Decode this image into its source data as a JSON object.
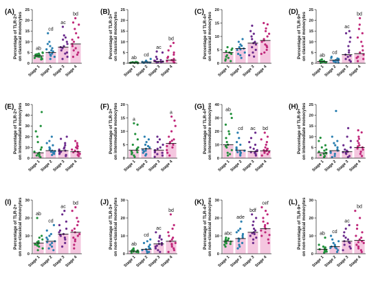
{
  "colors": {
    "Stage 1": "#22913c",
    "Stage 2": "#2a7fb0",
    "Stage 3": "#6a2a8c",
    "Stage 4": "#c0287a",
    "bar": "#f4c6df"
  },
  "chart_data": [
    {
      "type": "scatter",
      "panel": "(A)",
      "ylabel": [
        "Percentage of TLR-2+",
        "on classical monocytes"
      ],
      "ylim": [
        0,
        25
      ],
      "yticks": [
        0,
        5,
        10,
        15,
        20,
        25
      ],
      "categories": [
        "Stage 1",
        "Stage 2",
        "Stage 3",
        "Stage 4"
      ],
      "annotations": [
        "ab",
        "cd",
        "ac",
        "bd"
      ],
      "medians": [
        3.5,
        5.0,
        7.5,
        9.0
      ],
      "values": [
        [
          2.0,
          2.5,
          3.0,
          3.2,
          3.5,
          3.8,
          4.0,
          4.2,
          4.5,
          5.0,
          2.8,
          3.3,
          4.8,
          1.8
        ],
        [
          2.0,
          3.0,
          4.0,
          4.5,
          5.0,
          5.5,
          6.0,
          7.0,
          8.0,
          9.0,
          10.0,
          3.5,
          6.5,
          14.0
        ],
        [
          2.0,
          3.0,
          4.5,
          6.0,
          7.0,
          7.5,
          8.0,
          9.0,
          10.0,
          11.0,
          12.0,
          13.0,
          5.0,
          17.0
        ],
        [
          3.0,
          4.0,
          5.0,
          6.0,
          7.0,
          8.0,
          9.0,
          10.0,
          11.0,
          12.0,
          14.0,
          16.0,
          18.0,
          21.0,
          19.0
        ]
      ]
    },
    {
      "type": "scatter",
      "panel": "(B)",
      "ylabel": [
        "Percentage of TLR-3+",
        "on classical monocytes"
      ],
      "ylim": [
        0,
        25
      ],
      "yticks": [
        0,
        5,
        10,
        15,
        20,
        25
      ],
      "categories": [
        "Stage 1",
        "Stage 2",
        "Stage 3",
        "Stage 4"
      ],
      "annotations": [
        "ab",
        "cd",
        "ac",
        "bd"
      ],
      "medians": [
        0.3,
        0.6,
        0.8,
        1.5
      ],
      "values": [
        [
          0.1,
          0.2,
          0.3,
          0.3,
          0.4,
          0.5,
          0.2,
          0.6,
          0.1
        ],
        [
          0.2,
          0.4,
          0.5,
          0.6,
          0.8,
          1.0,
          1.2,
          0.3,
          0.7,
          2.0
        ],
        [
          0.3,
          0.5,
          0.8,
          1.0,
          1.2,
          1.5,
          2.0,
          3.0,
          5.0,
          5.5,
          0.6
        ],
        [
          0.5,
          0.8,
          1.0,
          1.5,
          2.0,
          3.0,
          4.0,
          5.0,
          6.0,
          8.0,
          9.5,
          1.2,
          0.3,
          2.5
        ]
      ]
    },
    {
      "type": "scatter",
      "panel": "(C)",
      "ylabel": [
        "Percentage of TLR-4+",
        "on classical monocytes"
      ],
      "ylim": [
        0,
        20
      ],
      "yticks": [
        0,
        5,
        10,
        15,
        20
      ],
      "categories": [
        "Stage 1",
        "Stage 2",
        "Stage 3",
        "Stage 4"
      ],
      "annotations": [],
      "medians": [
        4.0,
        5.5,
        7.5,
        8.5
      ],
      "values": [
        [
          1.0,
          2.0,
          3.0,
          3.5,
          4.0,
          4.5,
          5.0,
          5.5,
          6.0,
          2.5,
          1.5,
          3.8,
          0.8
        ],
        [
          2.0,
          3.5,
          4.0,
          5.0,
          5.5,
          6.0,
          6.5,
          7.0,
          8.0,
          9.0,
          3.0,
          5.2
        ],
        [
          3.0,
          4.0,
          5.0,
          6.0,
          7.0,
          7.5,
          8.0,
          9.0,
          10.0,
          11.0,
          12.0,
          14.0,
          2.5
        ],
        [
          4.0,
          5.0,
          6.0,
          7.0,
          8.0,
          8.5,
          9.0,
          10.0,
          11.0,
          12.0,
          13.0,
          14.5,
          15.0,
          6.5,
          3.5
        ]
      ]
    },
    {
      "type": "scatter",
      "panel": "(D)",
      "ylabel": [
        "Percentage of TLR-9+",
        "on classical monocytes"
      ],
      "ylim": [
        0,
        25
      ],
      "yticks": [
        0,
        5,
        10,
        15,
        20,
        25
      ],
      "categories": [
        "Stage 1",
        "Stage 2",
        "Stage 3",
        "Stage 4"
      ],
      "annotations": [
        "ab",
        "cd",
        "ac",
        "bd"
      ],
      "medians": [
        0.8,
        1.5,
        4.0,
        4.5
      ],
      "values": [
        [
          0.2,
          0.3,
          0.5,
          0.8,
          1.0,
          1.2,
          1.5,
          0.6,
          0.4,
          1.8
        ],
        [
          0.5,
          0.8,
          1.0,
          1.5,
          2.0,
          2.5,
          3.0,
          1.2,
          0.3,
          2.2
        ],
        [
          0.8,
          1.5,
          2.0,
          3.0,
          4.0,
          5.0,
          6.0,
          8.0,
          10.0,
          12.0,
          14.0,
          15.0,
          3.5
        ],
        [
          1.0,
          2.0,
          3.0,
          4.0,
          5.0,
          6.0,
          8.0,
          10.0,
          12.0,
          14.0,
          16.0,
          18.0,
          21.0,
          2.5
        ]
      ]
    },
    {
      "type": "scatter",
      "panel": "(E)",
      "ylabel": [
        "Percentage of TLR-2+",
        "on intermediate monocytes"
      ],
      "ylim": [
        0,
        50
      ],
      "yticks": [
        0,
        10,
        20,
        30,
        40,
        50
      ],
      "categories": [
        "Stage 1",
        "Stage 2",
        "Stage 3",
        "Stage 4"
      ],
      "annotations": [],
      "medians": [
        5.0,
        7.0,
        7.0,
        6.0
      ],
      "values": [
        [
          1.0,
          2.0,
          3.0,
          4.0,
          5.0,
          6.0,
          8.0,
          10.0,
          15.0,
          20.0,
          25.0,
          30.0,
          43.0,
          2.5
        ],
        [
          3.0,
          4.0,
          5.0,
          6.0,
          7.0,
          8.0,
          9.0,
          10.0,
          12.0,
          14.0,
          16.0,
          20.0,
          5.5,
          6.5
        ],
        [
          2.0,
          3.0,
          4.0,
          5.0,
          6.0,
          7.0,
          8.0,
          9.0,
          10.0,
          12.0,
          14.0,
          18.0,
          20.0,
          6.5
        ],
        [
          2.0,
          3.0,
          4.0,
          5.0,
          6.0,
          7.0,
          8.0,
          9.0,
          10.0,
          11.0,
          12.0,
          14.0,
          16.0,
          5.5
        ]
      ]
    },
    {
      "type": "scatter",
      "panel": "(F)",
      "ylabel": [
        "Percentage of TLR-3+",
        "on intermediate monocytes"
      ],
      "ylim": [
        0,
        20
      ],
      "yticks": [
        0,
        5,
        10,
        15,
        20
      ],
      "categories": [
        "Stage 1",
        "Stage 2",
        "Stage 3",
        "Stage 4"
      ],
      "annotations": [
        "a",
        "",
        "",
        "a"
      ],
      "medians": [
        3.0,
        3.5,
        3.0,
        5.5
      ],
      "values": [
        [
          0.5,
          1.0,
          1.5,
          2.0,
          2.5,
          3.0,
          3.5,
          4.0,
          5.0,
          7.0,
          9.0,
          13.0,
          12.5,
          2.2
        ],
        [
          1.0,
          1.5,
          2.0,
          2.5,
          3.0,
          3.5,
          4.0,
          5.0,
          6.0,
          7.0,
          8.0,
          2.8,
          4.5
        ],
        [
          0.5,
          1.0,
          1.5,
          2.0,
          2.5,
          3.0,
          4.0,
          5.0,
          6.0,
          7.0,
          8.0,
          2.2,
          3.5
        ],
        [
          1.0,
          2.0,
          3.0,
          4.0,
          5.0,
          5.5,
          6.0,
          7.0,
          8.0,
          10.0,
          12.0,
          14.0,
          15.5,
          4.5,
          6.5
        ]
      ]
    },
    {
      "type": "scatter",
      "panel": "(G)",
      "ylabel": [
        "Percentage of TLR-4+",
        "on intermediate monocytes"
      ],
      "ylim": [
        0,
        40
      ],
      "yticks": [
        0,
        10,
        20,
        30,
        40
      ],
      "categories": [
        "Stage 1",
        "Stage 2",
        "Stage 3",
        "Stage 4"
      ],
      "annotations": [
        "ab",
        "cd",
        "ac",
        "bd"
      ],
      "medians": [
        10.0,
        6.0,
        5.0,
        5.5
      ],
      "values": [
        [
          2.0,
          4.0,
          6.0,
          8.0,
          10.0,
          12.0,
          15.0,
          18.0,
          20.0,
          25.0,
          30.0,
          33.0,
          3.0,
          9.0
        ],
        [
          2.0,
          3.0,
          4.0,
          5.0,
          6.0,
          7.0,
          8.0,
          10.0,
          12.0,
          15.0,
          19.0,
          5.5,
          4.5
        ],
        [
          2.0,
          3.0,
          4.0,
          5.0,
          5.5,
          6.0,
          7.0,
          8.0,
          10.0,
          12.0,
          15.0,
          19.0,
          4.5
        ],
        [
          2.0,
          3.0,
          4.0,
          5.0,
          5.5,
          6.0,
          7.0,
          8.0,
          10.0,
          12.0,
          14.0,
          16.0,
          19.0,
          4.5,
          6.5
        ]
      ]
    },
    {
      "type": "scatter",
      "panel": "(H)",
      "ylabel": [
        "Percentage of TLR-9+",
        "on intermediate monocytes"
      ],
      "ylim": [
        0,
        25
      ],
      "yticks": [
        0,
        5,
        10,
        15,
        20,
        25
      ],
      "categories": [
        "Stage 1",
        "Stage 2",
        "Stage 3",
        "Stage 4"
      ],
      "annotations": [],
      "medians": [
        2.5,
        3.5,
        3.0,
        5.0
      ],
      "values": [
        [
          0.5,
          1.0,
          1.5,
          2.0,
          2.5,
          3.0,
          3.5,
          4.0,
          5.0,
          6.0,
          8.0,
          9.5,
          2.2
        ],
        [
          0.5,
          1.0,
          2.0,
          3.0,
          3.5,
          4.0,
          5.0,
          6.0,
          7.0,
          8.0,
          10.0,
          22.0,
          2.5
        ],
        [
          0.5,
          1.0,
          2.0,
          2.5,
          3.0,
          3.5,
          4.0,
          5.0,
          6.0,
          8.0,
          10.0,
          14.0,
          2.8
        ],
        [
          1.0,
          2.0,
          3.0,
          4.0,
          5.0,
          5.5,
          6.0,
          7.0,
          8.0,
          9.0,
          10.0,
          12.0,
          13.0,
          4.5
        ]
      ]
    },
    {
      "type": "scatter",
      "panel": "(I)",
      "ylabel": [
        "Percentage of TLR-2+",
        "on non-classical monocytes"
      ],
      "ylim": [
        0,
        30
      ],
      "yticks": [
        0,
        10,
        20,
        30
      ],
      "categories": [
        "Stage 1",
        "Stage 2",
        "Stage 3",
        "Stage 4"
      ],
      "annotations": [
        "ab",
        "cd",
        "ac",
        "bd"
      ],
      "medians": [
        6.0,
        7.0,
        11.0,
        12.0
      ],
      "values": [
        [
          2.0,
          3.0,
          4.0,
          5.0,
          5.5,
          6.0,
          6.5,
          7.0,
          8.0,
          9.0,
          10.0,
          20.0,
          4.5,
          5.2
        ],
        [
          2.0,
          3.0,
          4.0,
          5.0,
          6.0,
          7.0,
          8.0,
          9.0,
          10.0,
          11.0,
          13.0,
          16.0,
          6.5
        ],
        [
          4.0,
          6.0,
          8.0,
          9.0,
          10.0,
          11.0,
          12.0,
          13.0,
          14.0,
          16.0,
          18.0,
          22.0,
          24.0,
          10.5
        ],
        [
          3.0,
          5.0,
          7.0,
          9.0,
          10.0,
          11.0,
          12.0,
          13.0,
          14.0,
          16.0,
          18.0,
          20.0,
          24.0,
          26.0,
          8.0
        ]
      ]
    },
    {
      "type": "scatter",
      "panel": "(J)",
      "ylabel": [
        "Percentage of TLR-3+",
        "on non-classical monocytes"
      ],
      "ylim": [
        0,
        30
      ],
      "yticks": [
        0,
        10,
        20,
        30
      ],
      "categories": [
        "Stage 1",
        "Stage 2",
        "Stage 3",
        "Stage 4"
      ],
      "annotations": [
        "ab",
        "cd",
        "ac",
        "bd"
      ],
      "medians": [
        1.5,
        2.5,
        5.5,
        7.0
      ],
      "values": [
        [
          0.5,
          1.0,
          1.5,
          2.0,
          2.5,
          3.0,
          1.2,
          0.8,
          1.8,
          2.2
        ],
        [
          0.5,
          1.0,
          1.5,
          2.0,
          2.5,
          3.0,
          4.0,
          5.0,
          6.0,
          7.0,
          8.0,
          2.8
        ],
        [
          1.0,
          2.0,
          3.0,
          4.0,
          5.0,
          5.5,
          6.0,
          7.0,
          8.0,
          9.0,
          10.0,
          12.0,
          4.5
        ],
        [
          1.0,
          2.0,
          3.0,
          4.0,
          5.0,
          6.0,
          7.0,
          8.0,
          9.0,
          10.0,
          12.0,
          14.0,
          16.0,
          22.0,
          5.5
        ]
      ]
    },
    {
      "type": "scatter",
      "panel": "(K)",
      "ylabel": [
        "Percentage of TLR-4+",
        "on non-classical monocytes"
      ],
      "ylim": [
        0,
        30
      ],
      "yticks": [
        0,
        10,
        20,
        30
      ],
      "categories": [
        "Stage 1",
        "Stage 2",
        "Stage 3",
        "Stage 4"
      ],
      "annotations": [
        "abc",
        "ade",
        "bdf",
        "cef"
      ],
      "medians": [
        7.0,
        8.5,
        12.0,
        14.0
      ],
      "values": [
        [
          4.0,
          5.0,
          5.5,
          6.0,
          6.5,
          7.0,
          7.5,
          8.0,
          8.5,
          9.0,
          6.8,
          7.2,
          5.8
        ],
        [
          3.0,
          4.0,
          5.0,
          6.0,
          7.0,
          8.0,
          9.0,
          10.0,
          11.0,
          12.0,
          13.0,
          14.0,
          18.0,
          8.5
        ],
        [
          6.0,
          8.0,
          9.0,
          10.0,
          11.0,
          12.0,
          13.0,
          14.0,
          16.0,
          18.0,
          20.0,
          22.0,
          11.5
        ],
        [
          6.0,
          8.0,
          10.0,
          12.0,
          13.0,
          14.0,
          15.0,
          16.0,
          17.0,
          18.0,
          20.0,
          22.0,
          24.0,
          26.0,
          10.5
        ]
      ]
    },
    {
      "type": "scatter",
      "panel": "(L)",
      "ylabel": [
        "Percentage of TLR-9+",
        "on non-classical monocytes"
      ],
      "ylim": [
        0,
        30
      ],
      "yticks": [
        0,
        10,
        20,
        30
      ],
      "categories": [
        "Stage 1",
        "Stage 2",
        "Stage 3",
        "Stage 4"
      ],
      "annotations": [
        "ab",
        "cd",
        "ac",
        "bd"
      ],
      "medians": [
        2.5,
        4.0,
        7.0,
        7.5
      ],
      "values": [
        [
          0.5,
          1.0,
          1.5,
          2.0,
          2.5,
          3.0,
          3.5,
          4.0,
          5.0,
          9.0,
          2.2,
          1.2
        ],
        [
          1.0,
          2.0,
          3.0,
          3.5,
          4.0,
          5.0,
          6.0,
          7.0,
          8.0,
          10.0,
          3.2,
          4.5
        ],
        [
          2.0,
          3.0,
          4.0,
          5.0,
          6.0,
          7.0,
          8.0,
          9.0,
          10.0,
          12.0,
          14.0,
          16.0,
          6.5
        ],
        [
          1.0,
          2.0,
          3.0,
          4.0,
          5.0,
          6.0,
          7.0,
          8.0,
          9.0,
          10.0,
          12.0,
          14.0,
          16.0,
          20.0,
          24.0,
          6.5
        ]
      ]
    }
  ]
}
